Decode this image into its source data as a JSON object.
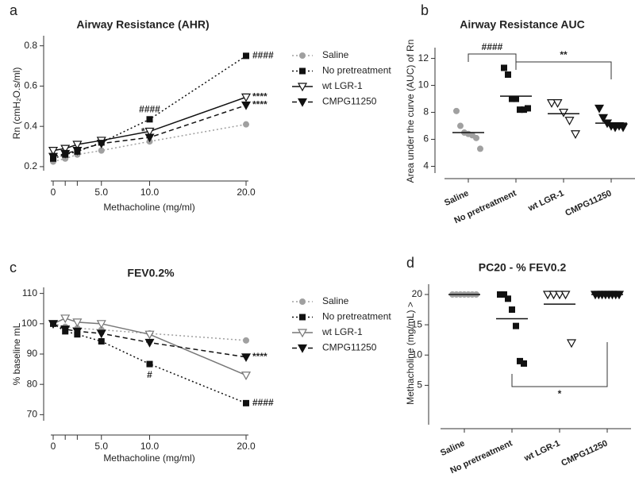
{
  "chart_data": [
    {
      "type": "line",
      "panel": "a",
      "title": "Airway Resistance (AHR)",
      "xlabel": "Methacholine (mg/ml)",
      "ylabel": "Rn (cmH₂O.s/ml)",
      "x": [
        0,
        1.25,
        2.5,
        5,
        10,
        20
      ],
      "xlim": [
        0,
        20
      ],
      "xticks": [
        0,
        {
          "value": 5,
          "label": "5.0"
        },
        {
          "value": 10,
          "label": "10.0"
        },
        {
          "value": 20,
          "label": "20.0"
        }
      ],
      "xminorticks": [
        1.25,
        2.5
      ],
      "ylim": [
        0.18,
        0.85
      ],
      "yticks": [
        0.2,
        0.4,
        0.6,
        0.8
      ],
      "legend": "right",
      "series": [
        {
          "name": "Saline",
          "color": "#a0a0a0",
          "marker": "circle",
          "line": "dotted",
          "values": [
            0.225,
            0.24,
            0.26,
            0.28,
            0.325,
            0.41
          ]
        },
        {
          "name": "No pretreatment",
          "color": "#111111",
          "marker": "square",
          "line": "dotted",
          "values": [
            0.24,
            0.26,
            0.275,
            0.32,
            0.435,
            0.75
          ]
        },
        {
          "name": "wt LGR-1",
          "color": "#111111",
          "marker": "triangle-open",
          "line": "solid",
          "values": [
            0.28,
            0.29,
            0.31,
            0.33,
            0.375,
            0.545
          ]
        },
        {
          "name": "CMPG11250",
          "color": "#111111",
          "marker": "triangle",
          "line": "dashed",
          "values": [
            0.25,
            0.265,
            0.28,
            0.315,
            0.345,
            0.505
          ]
        }
      ],
      "annotations": [
        {
          "text": "####",
          "series": 1,
          "point": 5,
          "position": "right"
        },
        {
          "text": "****",
          "series": 2,
          "point": 5,
          "position": "right"
        },
        {
          "text": "****",
          "series": 3,
          "point": 5,
          "position": "right"
        },
        {
          "text": "####",
          "series": 1,
          "point": 4,
          "position": "above"
        },
        {
          "text": "*",
          "series": 3,
          "point": 4,
          "position": "left"
        }
      ]
    },
    {
      "type": "dot",
      "panel": "b",
      "title": "Airway Resistance AUC",
      "ylabel": "Area under the curve (AUC) of Rn",
      "categories": [
        "Saline",
        "No pretreatment",
        "wt LGR-1",
        "CMPG11250"
      ],
      "ylim": [
        3.5,
        12.8
      ],
      "yticks": [
        4,
        6,
        8,
        10,
        12
      ],
      "markers": [
        "circle",
        "square",
        "triangle-open",
        "triangle"
      ],
      "colors": [
        "#a0a0a0",
        "#111111",
        "#111111",
        "#111111"
      ],
      "points": [
        [
          8.1,
          7.0,
          6.5,
          6.4,
          6.3,
          6.1,
          5.3
        ],
        [
          11.3,
          10.8,
          9.0,
          9.0,
          8.2,
          8.2,
          8.3
        ],
        [
          8.7,
          8.7,
          8.0,
          7.4,
          6.4
        ],
        [
          8.3,
          7.6,
          7.2,
          7.0,
          6.9,
          7.0,
          6.9
        ]
      ],
      "means": [
        6.5,
        9.2,
        7.9,
        7.2
      ],
      "annotations": [
        {
          "text": "####",
          "from": 0,
          "to": 1,
          "side": "above"
        },
        {
          "text": "**",
          "from": 1,
          "to": 3,
          "side": "above"
        }
      ]
    },
    {
      "type": "line",
      "panel": "c",
      "title": "FEV0.2%",
      "xlabel": "Methacholine (mg/ml)",
      "ylabel": "% baseline mL",
      "x": [
        0,
        1.25,
        2.5,
        5,
        10,
        20
      ],
      "xlim": [
        0,
        20
      ],
      "xticks": [
        0,
        {
          "value": 5,
          "label": "5.0"
        },
        {
          "value": 10,
          "label": "10.0"
        },
        {
          "value": 20,
          "label": "20.0"
        }
      ],
      "xminorticks": [
        1.25,
        2.5
      ],
      "ylim": [
        68,
        112
      ],
      "yticks": [
        70,
        80,
        90,
        100,
        110
      ],
      "legend": "right",
      "series": [
        {
          "name": "Saline",
          "color": "#a0a0a0",
          "marker": "circle",
          "line": "dotted",
          "values": [
            100,
            99,
            98.5,
            98,
            96.8,
            94.5
          ]
        },
        {
          "name": "No pretreatment",
          "color": "#111111",
          "marker": "square",
          "line": "dotted",
          "values": [
            100,
            97.5,
            96.5,
            94.2,
            86.7,
            73.8
          ]
        },
        {
          "name": "wt LGR-1",
          "color": "#777777",
          "marker": "triangle-open",
          "line": "solid",
          "values": [
            100,
            101.8,
            100.5,
            100,
            96.5,
            83
          ]
        },
        {
          "name": "CMPG11250",
          "color": "#111111",
          "marker": "triangle",
          "line": "dashed",
          "values": [
            100,
            98.2,
            97.5,
            96.8,
            93.8,
            89
          ]
        }
      ],
      "annotations": [
        {
          "text": "****",
          "series": 3,
          "point": 5,
          "position": "right"
        },
        {
          "text": "####",
          "series": 1,
          "point": 5,
          "position": "right"
        },
        {
          "text": "#",
          "series": 1,
          "point": 4,
          "position": "below"
        }
      ]
    },
    {
      "type": "dot",
      "panel": "d",
      "title": "PC20 - % FEV0.2",
      "ylabel": "Methacholine (mg/mL) >",
      "categories": [
        "Saline",
        "No pretreatment",
        "wt LGR-1",
        "CMPG11250"
      ],
      "ylim": [
        -1.5,
        21.7
      ],
      "yticks": [
        5,
        10,
        15,
        20
      ],
      "markers": [
        "circle",
        "square",
        "triangle-open",
        "triangle"
      ],
      "colors": [
        "#a0a0a0",
        "#111111",
        "#111111",
        "#111111"
      ],
      "points": [
        [
          20,
          20,
          20,
          20,
          20,
          20,
          20
        ],
        [
          20,
          20,
          19.3,
          17.5,
          14.8,
          9,
          8.6
        ],
        [
          20,
          20,
          20,
          20,
          12
        ],
        [
          20,
          20,
          20,
          20,
          20,
          20,
          20,
          20
        ]
      ],
      "means": [
        20,
        16,
        18.4,
        20
      ],
      "annotations": [
        {
          "text": "*",
          "from": 1,
          "to": 3,
          "side": "below"
        }
      ]
    }
  ]
}
